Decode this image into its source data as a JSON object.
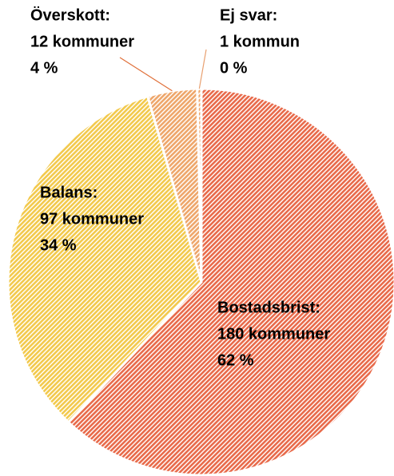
{
  "chart_data": {
    "type": "pie",
    "categories": [
      "Bostadsbrist:",
      "Balans:",
      "Överskott:",
      "Ej svar:"
    ],
    "values": [
      180,
      97,
      12,
      1
    ],
    "value_labels": [
      "180 kommuner",
      "97 kommuner",
      "12 kommuner",
      "1 kommun"
    ],
    "percentages": [
      62,
      34,
      4,
      0
    ],
    "percentage_labels": [
      "62 %",
      "34 %",
      "4 %",
      "0 %"
    ],
    "colors": [
      "#e86a4a",
      "#f2c94c",
      "#eea66a",
      "#eea66a"
    ]
  }
}
